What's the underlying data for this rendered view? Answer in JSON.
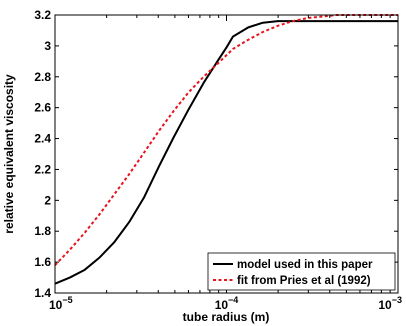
{
  "chart_data": {
    "type": "line",
    "xscale": "log",
    "xlim": [
      1e-05,
      0.001
    ],
    "ylim": [
      1.4,
      3.2
    ],
    "xlabel": "tube radius (m)",
    "ylabel": "relative equivalent viscosity",
    "grid": false,
    "legend_position": "bottom-right",
    "x_ticks": [
      {
        "base": "10",
        "exp": "−5"
      },
      {
        "base": "10",
        "exp": "−4"
      },
      {
        "base": "10",
        "exp": "−3"
      }
    ],
    "y_ticks": [
      "1.4",
      "1.6",
      "1.8",
      "2",
      "2.2",
      "2.4",
      "2.6",
      "2.8",
      "3",
      "3.2"
    ],
    "series": [
      {
        "name": "model used in this paper",
        "color": "#000000",
        "style": "solid",
        "x": [
          1e-05,
          1.22e-05,
          1.49e-05,
          1.82e-05,
          2.22e-05,
          2.71e-05,
          3.31e-05,
          4.04e-05,
          4.93e-05,
          6.02e-05,
          7.35e-05,
          8.97e-05,
          0.0001,
          0.000109,
          0.000134,
          0.000163,
          0.000199,
          0.000243,
          0.000296,
          0.000362,
          0.000441,
          0.000539,
          0.000658,
          0.000803,
          0.001
        ],
        "y": [
          1.46,
          1.5,
          1.55,
          1.63,
          1.73,
          1.86,
          2.02,
          2.22,
          2.41,
          2.59,
          2.76,
          2.91,
          2.99,
          3.06,
          3.12,
          3.15,
          3.16,
          3.16,
          3.16,
          3.16,
          3.16,
          3.16,
          3.16,
          3.16,
          3.16
        ]
      },
      {
        "name": "fit from Pries et al (1992)",
        "color": "#e8141c",
        "style": "dashed",
        "x": [
          1e-05,
          1.22e-05,
          1.49e-05,
          1.82e-05,
          2.22e-05,
          2.71e-05,
          3.31e-05,
          4.04e-05,
          4.93e-05,
          6.02e-05,
          7.35e-05,
          8.97e-05,
          0.0001,
          0.000109,
          0.000134,
          0.000163,
          0.000199,
          0.000243,
          0.000296,
          0.000362,
          0.000441,
          0.000539,
          0.000658,
          0.000803,
          0.001
        ],
        "y": [
          1.58,
          1.68,
          1.79,
          1.91,
          2.04,
          2.17,
          2.31,
          2.45,
          2.58,
          2.7,
          2.8,
          2.89,
          2.94,
          2.98,
          3.04,
          3.09,
          3.13,
          3.16,
          3.18,
          3.19,
          3.2,
          3.2,
          3.2,
          3.2,
          3.2
        ]
      }
    ]
  }
}
